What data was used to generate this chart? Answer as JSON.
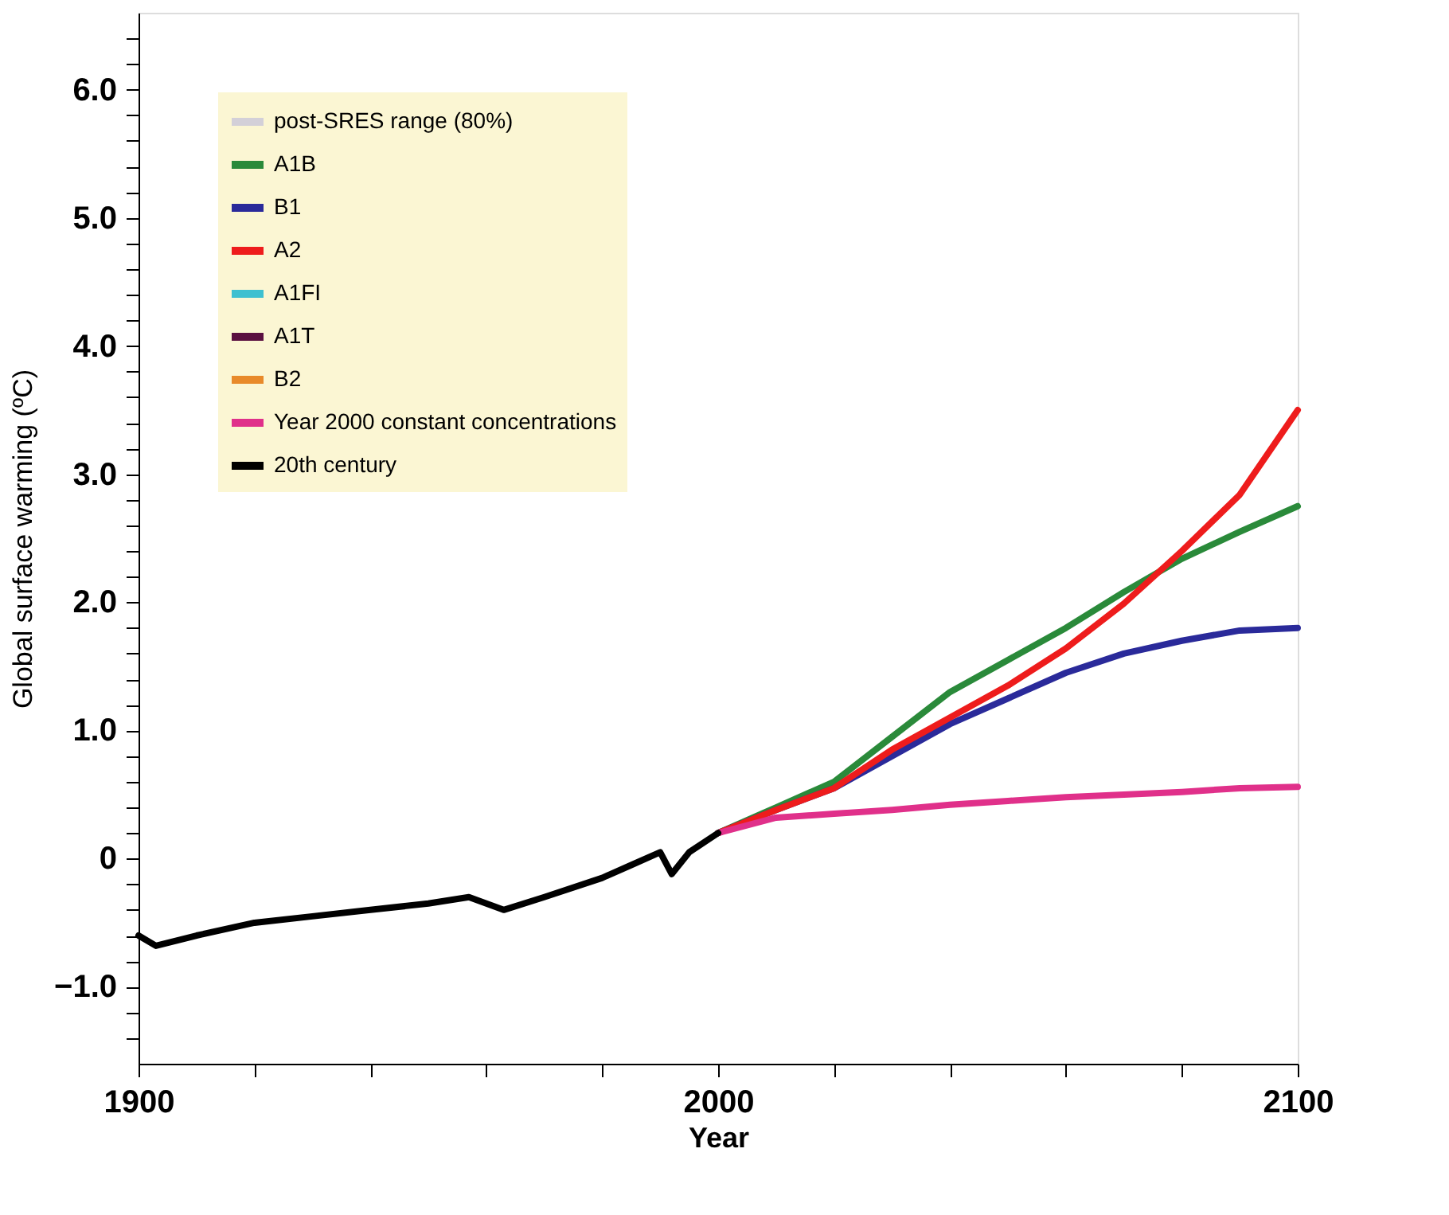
{
  "chart_data": {
    "type": "line",
    "xlabel": "Year",
    "ylabel": "Global surface warming (ºC)",
    "xlim": [
      1900,
      2100
    ],
    "ylim": [
      -1.6,
      6.6
    ],
    "xticks": [
      1900,
      {
        "value": 1920,
        "label": null
      },
      {
        "value": 1940,
        "label": null
      },
      {
        "value": 1960,
        "label": null
      },
      {
        "value": 1980,
        "label": null
      },
      2000,
      {
        "value": 2020,
        "label": null
      },
      {
        "value": 2040,
        "label": null
      },
      {
        "value": 2060,
        "label": null
      },
      {
        "value": 2080,
        "label": null
      },
      2100
    ],
    "yticks": [
      {
        "value": -1.4,
        "label": null
      },
      {
        "value": -1.2,
        "label": null
      },
      {
        "value": -1,
        "label": "−1.0"
      },
      {
        "value": -0.8,
        "label": null
      },
      {
        "value": -0.6,
        "label": null
      },
      {
        "value": -0.4,
        "label": null
      },
      {
        "value": -0.2,
        "label": null
      },
      0,
      {
        "value": 0.2,
        "label": null
      },
      {
        "value": 0.4,
        "label": null
      },
      {
        "value": 0.6,
        "label": null
      },
      {
        "value": 0.8,
        "label": null
      },
      {
        "value": 1,
        "label": "1.0"
      },
      {
        "value": 1.2,
        "label": null
      },
      {
        "value": 1.4,
        "label": null
      },
      {
        "value": 1.6,
        "label": null
      },
      {
        "value": 1.8,
        "label": null
      },
      {
        "value": 2,
        "label": "2.0"
      },
      {
        "value": 2.2,
        "label": null
      },
      {
        "value": 2.4,
        "label": null
      },
      {
        "value": 2.6,
        "label": null
      },
      {
        "value": 2.8,
        "label": null
      },
      {
        "value": 3,
        "label": "3.0"
      },
      {
        "value": 3.2,
        "label": null
      },
      {
        "value": 3.4,
        "label": null
      },
      {
        "value": 3.6,
        "label": null
      },
      {
        "value": 3.8,
        "label": null
      },
      {
        "value": 4,
        "label": "4.0"
      },
      {
        "value": 4.2,
        "label": null
      },
      {
        "value": 4.4,
        "label": null
      },
      {
        "value": 4.6,
        "label": null
      },
      {
        "value": 4.8,
        "label": null
      },
      {
        "value": 5,
        "label": "5.0"
      },
      {
        "value": 5.2,
        "label": null
      },
      {
        "value": 5.4,
        "label": null
      },
      {
        "value": 5.6,
        "label": null
      },
      {
        "value": 5.8,
        "label": null
      },
      {
        "value": 6,
        "label": "6.0"
      },
      {
        "value": 6.2,
        "label": null
      },
      {
        "value": 6.4,
        "label": null
      }
    ],
    "grid": false,
    "legend": "top left",
    "line_style": "solid",
    "marker": "none",
    "series": [
      {
        "name": "post-SRES range (80%)",
        "type": "area",
        "color": "#d3d0d8"
      },
      {
        "name": "A1B",
        "color": "#2a8a3a",
        "x": [
          2000,
          2010,
          2020,
          2030,
          2040,
          2050,
          2060,
          2070,
          2080,
          2090,
          2100
        ],
        "values": [
          0.2,
          0.4,
          0.6,
          0.95,
          1.3,
          1.55,
          1.8,
          2.08,
          2.34,
          2.55,
          2.75
        ]
      },
      {
        "name": "B1",
        "color": "#2a2a9a",
        "x": [
          2000,
          2010,
          2020,
          2030,
          2040,
          2050,
          2060,
          2070,
          2080,
          2090,
          2100
        ],
        "values": [
          0.2,
          0.38,
          0.55,
          0.8,
          1.05,
          1.25,
          1.45,
          1.6,
          1.7,
          1.78,
          1.8
        ]
      },
      {
        "name": "A2",
        "color": "#ee1c1c",
        "x": [
          2000,
          2010,
          2020,
          2030,
          2040,
          2050,
          2060,
          2070,
          2080,
          2090,
          2100
        ],
        "values": [
          0.2,
          0.38,
          0.55,
          0.85,
          1.1,
          1.35,
          1.64,
          1.99,
          2.4,
          2.84,
          3.5
        ]
      },
      {
        "name": "A1FI",
        "color": "#3ec0d0"
      },
      {
        "name": "A1T",
        "color": "#5a1040"
      },
      {
        "name": "B2",
        "color": "#e88a2a"
      },
      {
        "name": "Year 2000 constant concentrations",
        "color": "#e0308a",
        "x": [
          2000,
          2010,
          2020,
          2030,
          2040,
          2050,
          2060,
          2070,
          2080,
          2090,
          2100
        ],
        "values": [
          0.2,
          0.32,
          0.35,
          0.38,
          0.42,
          0.45,
          0.48,
          0.5,
          0.52,
          0.55,
          0.56
        ]
      },
      {
        "name": "20th century",
        "color": "#000000",
        "x": [
          1900,
          1903,
          1910,
          1920,
          1930,
          1940,
          1950,
          1957,
          1963,
          1970,
          1980,
          1985,
          1990,
          1992,
          1995,
          2000
        ],
        "values": [
          -0.6,
          -0.68,
          -0.6,
          -0.5,
          -0.45,
          -0.4,
          -0.35,
          -0.3,
          -0.4,
          -0.3,
          -0.15,
          -0.05,
          0.05,
          -0.12,
          0.05,
          0.2
        ]
      }
    ]
  }
}
